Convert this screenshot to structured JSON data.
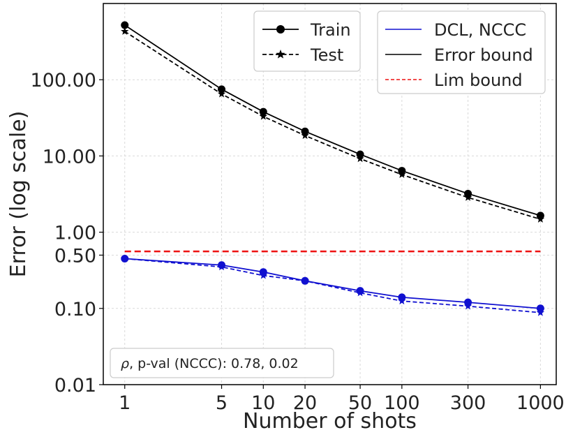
{
  "chart_data": {
    "type": "line",
    "title": "",
    "xlabel": "Number of shots",
    "ylabel": "Error (log scale)",
    "xscale": "log",
    "yscale": "log",
    "x": [
      1,
      5,
      10,
      20,
      50,
      100,
      300,
      1000
    ],
    "x_tick_labels": [
      "1",
      "5",
      "10",
      "20",
      "50",
      "100",
      "300",
      "1000"
    ],
    "y_ticks": [
      0.01,
      0.1,
      0.5,
      1,
      10,
      100
    ],
    "y_tick_labels": [
      "0.01",
      "0.10",
      "0.50",
      "1.00",
      "10.00",
      "100.00"
    ],
    "ylim": [
      0.01,
      1000
    ],
    "series": [
      {
        "name": "Train",
        "group": "Error bound",
        "style": "solid",
        "marker": "circle",
        "color": "#000000",
        "values": [
          520,
          75,
          38,
          21,
          10.5,
          6.4,
          3.2,
          1.65
        ]
      },
      {
        "name": "Test",
        "group": "Error bound",
        "style": "dashed",
        "marker": "star",
        "color": "#000000",
        "values": [
          430,
          65,
          33,
          18.5,
          9.2,
          5.7,
          2.85,
          1.48
        ]
      },
      {
        "name": "Train",
        "group": "DCL, NCCC",
        "style": "solid",
        "marker": "circle",
        "color": "#1010d0",
        "values": [
          0.45,
          0.37,
          0.3,
          0.23,
          0.17,
          0.14,
          0.12,
          0.1
        ]
      },
      {
        "name": "Test",
        "group": "DCL, NCCC",
        "style": "dashed",
        "marker": "star",
        "color": "#1010d0",
        "values": [
          0.45,
          0.35,
          0.27,
          0.23,
          0.16,
          0.125,
          0.107,
          0.088
        ]
      },
      {
        "name": "Lim bound",
        "group": "Lim bound",
        "style": "dashed",
        "marker": "none",
        "color": "#ee1111",
        "values": [
          0.56,
          0.56,
          0.56,
          0.56,
          0.56,
          0.56,
          0.56,
          0.56
        ]
      }
    ],
    "legend_style": [
      {
        "label": "Train",
        "style": "solid",
        "marker": "circle",
        "color": "#000000"
      },
      {
        "label": "Test",
        "style": "dashed",
        "marker": "star",
        "color": "#000000"
      }
    ],
    "legend_method": [
      {
        "label": "DCL, NCCC",
        "style": "solid",
        "color": "#1010d0"
      },
      {
        "label": "Error bound",
        "style": "solid",
        "color": "#000000"
      },
      {
        "label": "Lim bound",
        "style": "dashed",
        "color": "#ee1111"
      }
    ],
    "annotation_prefix": "ρ",
    "annotation": ", p-val (NCCC):  0.78, 0.02",
    "grid": true
  }
}
